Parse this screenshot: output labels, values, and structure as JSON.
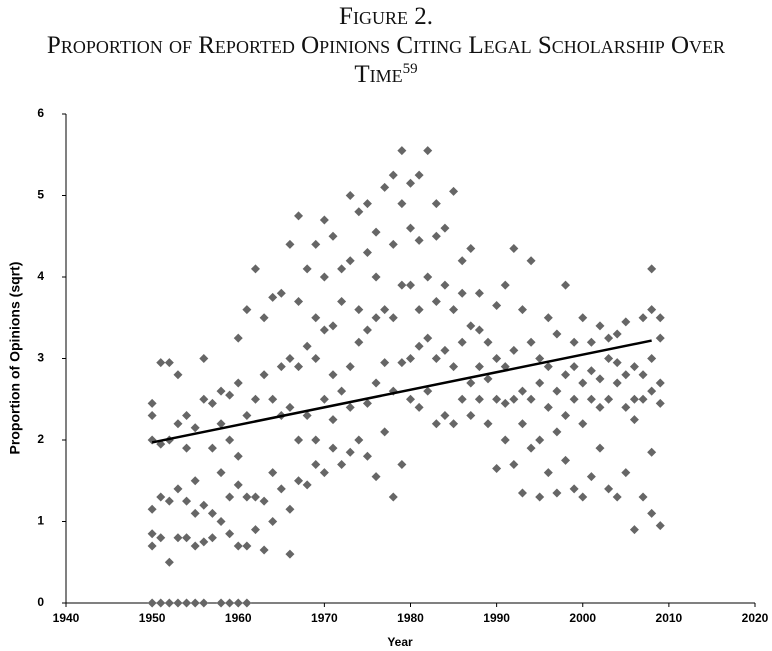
{
  "chart_data": {
    "type": "scatter",
    "title": "Figure 2.",
    "subtitle": "Proportion of Reported Opinions Citing Legal Scholarship Over Time",
    "footnote": "59",
    "xlabel": "Year",
    "ylabel": "Proportion of Opinions (sqrt)",
    "color": "#666666",
    "xlim": [
      1940,
      2020
    ],
    "xticks": [
      1940,
      1950,
      1960,
      1970,
      1980,
      1990,
      2000,
      2010,
      2020
    ],
    "ylim": [
      0,
      6
    ],
    "yticks": [
      0,
      1,
      2,
      3,
      4,
      5,
      6
    ],
    "grid": false,
    "x": [
      1950,
      1950,
      1950,
      1950,
      1950,
      1950,
      1950,
      1951,
      1951,
      1951,
      1951,
      1951,
      1952,
      1952,
      1952,
      1952,
      1952,
      1953,
      1953,
      1953,
      1953,
      1953,
      1954,
      1954,
      1954,
      1954,
      1954,
      1955,
      1955,
      1955,
      1955,
      1955,
      1956,
      1956,
      1956,
      1956,
      1956,
      1957,
      1957,
      1957,
      1957,
      1958,
      1958,
      1958,
      1958,
      1958,
      1959,
      1959,
      1959,
      1959,
      1959,
      1960,
      1960,
      1960,
      1960,
      1960,
      1960,
      1961,
      1961,
      1961,
      1961,
      1961,
      1962,
      1962,
      1962,
      1962,
      1963,
      1963,
      1963,
      1963,
      1964,
      1964,
      1964,
      1964,
      1965,
      1965,
      1965,
      1965,
      1966,
      1966,
      1966,
      1966,
      1966,
      1967,
      1967,
      1967,
      1967,
      1967,
      1968,
      1968,
      1968,
      1968,
      1969,
      1969,
      1969,
      1969,
      1969,
      1970,
      1970,
      1970,
      1970,
      1970,
      1971,
      1971,
      1971,
      1971,
      1971,
      1972,
      1972,
      1972,
      1972,
      1973,
      1973,
      1973,
      1973,
      1973,
      1974,
      1974,
      1974,
      1974,
      1975,
      1975,
      1975,
      1975,
      1975,
      1976,
      1976,
      1976,
      1976,
      1976,
      1977,
      1977,
      1977,
      1977,
      1978,
      1978,
      1978,
      1978,
      1978,
      1979,
      1979,
      1979,
      1979,
      1979,
      1980,
      1980,
      1980,
      1980,
      1980,
      1981,
      1981,
      1981,
      1981,
      1981,
      1982,
      1982,
      1982,
      1982,
      1983,
      1983,
      1983,
      1983,
      1983,
      1984,
      1984,
      1984,
      1984,
      1985,
      1985,
      1985,
      1985,
      1986,
      1986,
      1986,
      1986,
      1987,
      1987,
      1987,
      1987,
      1988,
      1988,
      1988,
      1988,
      1989,
      1989,
      1989,
      1990,
      1990,
      1990,
      1990,
      1991,
      1991,
      1991,
      1991,
      1992,
      1992,
      1992,
      1992,
      1993,
      1993,
      1993,
      1993,
      1994,
      1994,
      1994,
      1994,
      1995,
      1995,
      1995,
      1995,
      1996,
      1996,
      1996,
      1996,
      1997,
      1997,
      1997,
      1997,
      1998,
      1998,
      1998,
      1998,
      1999,
      1999,
      1999,
      1999,
      2000,
      2000,
      2000,
      2000,
      2001,
      2001,
      2001,
      2001,
      2002,
      2002,
      2002,
      2002,
      2003,
      2003,
      2003,
      2003,
      2004,
      2004,
      2004,
      2004,
      2005,
      2005,
      2005,
      2005,
      2006,
      2006,
      2006,
      2006,
      2007,
      2007,
      2007,
      2007,
      2008,
      2008,
      2008,
      2008,
      2008,
      2008,
      2009,
      2009,
      2009,
      2009,
      2009
    ],
    "y": [
      0,
      0.7,
      0.85,
      1.15,
      2.0,
      2.3,
      2.45,
      0,
      1.3,
      1.95,
      2.95,
      0.8,
      0,
      0.5,
      1.25,
      2.0,
      2.95,
      0,
      0.8,
      1.4,
      2.2,
      2.8,
      0,
      0.8,
      1.25,
      1.9,
      2.3,
      0,
      0.7,
      1.1,
      2.15,
      1.5,
      0,
      0.75,
      1.2,
      2.5,
      3.0,
      0.8,
      1.1,
      1.9,
      2.45,
      0,
      1.0,
      1.6,
      2.2,
      2.6,
      0,
      0.85,
      1.3,
      2.0,
      2.55,
      0,
      0.7,
      1.45,
      1.8,
      2.7,
      3.25,
      0,
      0.7,
      1.3,
      2.3,
      3.6,
      0.9,
      1.3,
      2.5,
      4.1,
      0.65,
      1.25,
      2.8,
      3.5,
      1.0,
      1.6,
      2.5,
      3.75,
      1.4,
      2.3,
      2.9,
      3.8,
      0.6,
      1.15,
      2.4,
      3.0,
      4.4,
      1.5,
      2.0,
      2.9,
      3.7,
      4.75,
      1.45,
      2.3,
      3.15,
      4.1,
      1.7,
      2.0,
      3.0,
      3.5,
      4.4,
      1.6,
      2.5,
      3.35,
      4.0,
      4.7,
      1.9,
      2.25,
      2.8,
      3.4,
      4.5,
      1.7,
      2.6,
      3.7,
      4.1,
      1.85,
      2.4,
      2.9,
      4.2,
      5.0,
      2.0,
      3.2,
      3.6,
      4.8,
      1.8,
      2.45,
      3.35,
      4.3,
      4.9,
      1.55,
      2.7,
      3.5,
      4.0,
      4.55,
      2.1,
      2.95,
      3.6,
      5.1,
      1.3,
      2.6,
      3.5,
      4.4,
      5.25,
      1.7,
      2.95,
      3.9,
      4.9,
      5.55,
      2.5,
      3.0,
      3.9,
      4.6,
      5.15,
      2.4,
      3.15,
      3.6,
      4.45,
      5.25,
      2.6,
      3.25,
      4.0,
      5.55,
      2.2,
      3.0,
      3.7,
      4.5,
      4.9,
      2.3,
      3.1,
      3.9,
      4.6,
      2.2,
      2.9,
      3.6,
      5.05,
      2.5,
      3.2,
      3.8,
      4.2,
      2.3,
      2.7,
      3.4,
      4.35,
      2.5,
      2.9,
      3.35,
      3.8,
      2.2,
      2.75,
      3.2,
      1.65,
      2.5,
      3.0,
      3.65,
      2.0,
      2.45,
      2.9,
      3.9,
      1.7,
      2.5,
      3.1,
      4.35,
      1.35,
      2.2,
      2.6,
      3.6,
      1.9,
      2.5,
      3.2,
      4.2,
      1.3,
      2.0,
      2.7,
      3.0,
      1.6,
      2.4,
      2.9,
      3.5,
      1.35,
      2.1,
      2.6,
      3.3,
      1.75,
      2.3,
      2.8,
      3.9,
      1.4,
      2.5,
      2.9,
      3.2,
      1.3,
      2.2,
      2.7,
      3.5,
      1.55,
      2.5,
      2.85,
      3.2,
      1.9,
      2.4,
      2.75,
      3.4,
      1.4,
      2.5,
      3.0,
      3.25,
      1.3,
      2.7,
      2.95,
      3.3,
      1.6,
      2.4,
      2.8,
      3.45,
      0.9,
      2.25,
      2.5,
      2.9,
      1.3,
      2.5,
      2.8,
      3.5,
      1.1,
      1.85,
      2.6,
      3.0,
      3.6,
      4.1,
      0.95,
      2.45,
      2.7,
      3.25,
      3.5
    ],
    "trendline": {
      "x": [
        1950,
        2008
      ],
      "y": [
        1.97,
        3.22
      ]
    }
  }
}
